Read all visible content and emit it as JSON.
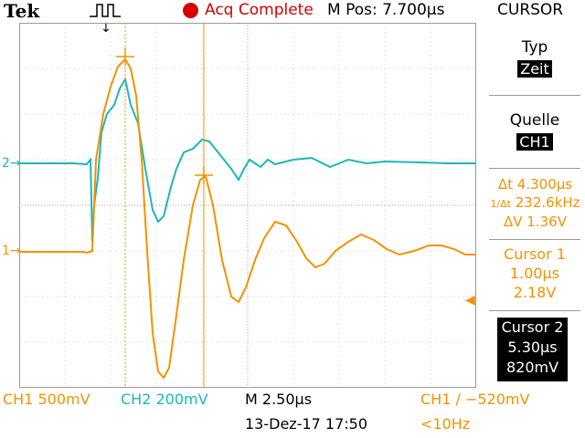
{
  "header": {
    "brand": "Tek",
    "acq_status": "Acq Complete",
    "m_pos": "M Pos: 7.700µs",
    "menu_title": "CURSOR"
  },
  "side_menu": {
    "typ_label": "Typ",
    "typ_value": "Zeit",
    "quelle_label": "Quelle",
    "quelle_value": "CH1",
    "delta_t": "Δt 4.300µs",
    "inv_delta_t": "232.6kHz",
    "delta_v": "ΔV 1.36V",
    "cursor1_label": "Cursor 1",
    "cursor1_time": "1.00µs",
    "cursor1_volt": "2.18V",
    "cursor2_label": "Cursor 2",
    "cursor2_time": "5.30µs",
    "cursor2_volt": "820mV"
  },
  "bottom": {
    "ch1_scale": "CH1  500mV",
    "ch2_scale": "CH2  200mV",
    "timebase": "M 2.50µs",
    "trigger": "CH1 ∕ −520mV",
    "date": "13-Dez-17 17:50",
    "freq": "<10Hz"
  },
  "markers": {
    "ch2": "2→",
    "ch1": "1→",
    "trigger_level": "◀",
    "trigger_pos": "↓"
  },
  "colors": {
    "ch1": "#f39200",
    "ch2": "#1cb8b8",
    "acq": "#d40000"
  }
}
